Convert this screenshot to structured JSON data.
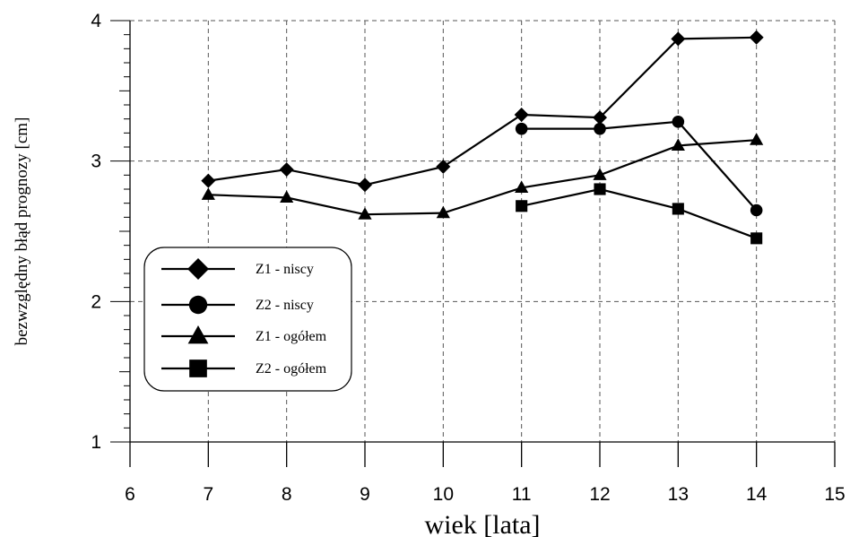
{
  "chart_data": {
    "type": "line",
    "xlabel": "wiek [lata]",
    "ylabel": "bezwzględny błąd prognozy [cm]",
    "xlim": [
      6,
      15
    ],
    "ylim": [
      1,
      4
    ],
    "xticks": [
      "6",
      "7",
      "8",
      "9",
      "10",
      "11",
      "12",
      "13",
      "14",
      "15"
    ],
    "yticks": [
      "1",
      "2",
      "3",
      "4"
    ],
    "grid": true,
    "legend_position": "left",
    "series": [
      {
        "name": "Z1 - niscy",
        "marker": "diamond",
        "x": [
          7,
          8,
          9,
          10,
          11,
          12,
          13,
          14
        ],
        "y": [
          2.86,
          2.94,
          2.83,
          2.96,
          3.33,
          3.31,
          3.87,
          3.88
        ]
      },
      {
        "name": "Z2 - niscy",
        "marker": "circle",
        "x": [
          11,
          12,
          13,
          14
        ],
        "y": [
          3.23,
          3.23,
          3.28,
          2.65
        ]
      },
      {
        "name": "Z1 - ogółem",
        "marker": "triangle",
        "x": [
          7,
          8,
          9,
          10,
          11,
          12,
          13,
          14
        ],
        "y": [
          2.76,
          2.74,
          2.62,
          2.63,
          2.81,
          2.9,
          3.11,
          3.15
        ]
      },
      {
        "name": "Z2 - ogółem",
        "marker": "square",
        "x": [
          11,
          12,
          13,
          14
        ],
        "y": [
          2.68,
          2.8,
          2.66,
          2.45
        ]
      }
    ]
  }
}
